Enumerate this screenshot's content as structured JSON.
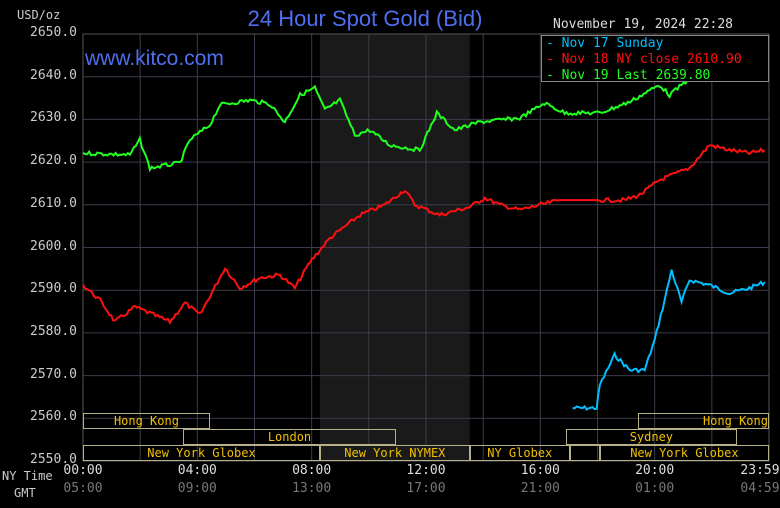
{
  "header": {
    "title": "24 Hour Spot Gold (Bid)",
    "unit": "USD/oz",
    "date": "November 19, 2024 22:28",
    "watermark": "www.kitco.com"
  },
  "chart_data": {
    "type": "line",
    "title": "24 Hour Spot Gold (Bid)",
    "ylabel": "USD/oz",
    "ylim": [
      2550,
      2650
    ],
    "xlim": [
      0,
      24
    ],
    "y_ticks": [
      "2650.0",
      "2640.0",
      "2630.0",
      "2620.0",
      "2610.0",
      "2600.0",
      "2590.0",
      "2580.0",
      "2570.0",
      "2560.0",
      "2550.0"
    ],
    "x_row_labels": [
      "NY Time",
      "GMT"
    ],
    "x_ticks_ny": [
      "00:00",
      "04:00",
      "08:00",
      "12:00",
      "16:00",
      "20:00",
      "23:59"
    ],
    "x_ticks_gmt": [
      "05:00",
      "09:00",
      "13:00",
      "17:00",
      "21:00",
      "01:00",
      "04:59"
    ],
    "grid": true,
    "legend_position": "top-right",
    "series": [
      {
        "name": "Nov 17 Sunday",
        "color": "#00bfff",
        "points": [
          [
            17.13,
            2562.4
          ],
          [
            17.97,
            2562.4
          ],
          [
            18.08,
            2567.8
          ],
          [
            18.6,
            2574.8
          ],
          [
            19.13,
            2571.3
          ],
          [
            19.65,
            2571.3
          ],
          [
            20.0,
            2578.3
          ],
          [
            20.35,
            2587.7
          ],
          [
            20.59,
            2594.7
          ],
          [
            20.94,
            2587.2
          ],
          [
            21.22,
            2592.4
          ],
          [
            21.92,
            2591.2
          ],
          [
            22.62,
            2589.3
          ],
          [
            23.32,
            2590.5
          ],
          [
            23.85,
            2591.9
          ]
        ]
      },
      {
        "name": "Nov 18 NY close 2610.90",
        "color": "#ff1010",
        "points": [
          [
            0,
            2591.2
          ],
          [
            0.59,
            2587.7
          ],
          [
            1.12,
            2582.6
          ],
          [
            1.82,
            2586.1
          ],
          [
            3.04,
            2582.6
          ],
          [
            3.57,
            2587
          ],
          [
            4.09,
            2584.2
          ],
          [
            4.97,
            2595.2
          ],
          [
            5.49,
            2590.5
          ],
          [
            6.19,
            2592.9
          ],
          [
            6.89,
            2593.6
          ],
          [
            7.41,
            2590.5
          ],
          [
            7.94,
            2596.6
          ],
          [
            8.64,
            2602.2
          ],
          [
            9.69,
            2607.6
          ],
          [
            10.56,
            2610
          ],
          [
            11.26,
            2613.5
          ],
          [
            11.61,
            2610
          ],
          [
            12.48,
            2607.6
          ],
          [
            13.53,
            2609.5
          ],
          [
            14.06,
            2611.6
          ],
          [
            14.58,
            2610
          ],
          [
            15.28,
            2608.8
          ],
          [
            16.68,
            2611.1
          ],
          [
            18.08,
            2611.1
          ],
          [
            18.95,
            2611.1
          ],
          [
            19.48,
            2612.3
          ],
          [
            20.17,
            2615.8
          ],
          [
            21.22,
            2618.6
          ],
          [
            21.92,
            2624
          ],
          [
            22.62,
            2622.8
          ],
          [
            23.32,
            2622.1
          ],
          [
            23.85,
            2622.8
          ]
        ]
      },
      {
        "name": "Nov 19 Last 2639.80",
        "color": "#20ff20",
        "points": [
          [
            0,
            2622.1
          ],
          [
            1.64,
            2621.7
          ],
          [
            1.99,
            2625.2
          ],
          [
            2.34,
            2618.6
          ],
          [
            3.39,
            2619.8
          ],
          [
            3.74,
            2625.2
          ],
          [
            4.44,
            2628.7
          ],
          [
            4.79,
            2633.4
          ],
          [
            5.84,
            2634.5
          ],
          [
            6.54,
            2633.6
          ],
          [
            7.06,
            2629.4
          ],
          [
            7.59,
            2635.7
          ],
          [
            8.11,
            2637.4
          ],
          [
            8.46,
            2632.2
          ],
          [
            8.99,
            2634.5
          ],
          [
            9.51,
            2626.3
          ],
          [
            10.03,
            2627.5
          ],
          [
            10.73,
            2624
          ],
          [
            11.78,
            2622.8
          ],
          [
            12.38,
            2631.5
          ],
          [
            13.01,
            2627.5
          ],
          [
            13.88,
            2629.4
          ],
          [
            15.28,
            2630.3
          ],
          [
            16.15,
            2633.8
          ],
          [
            16.85,
            2631.5
          ],
          [
            18.08,
            2631.5
          ],
          [
            19.13,
            2634.1
          ],
          [
            20.17,
            2638.1
          ],
          [
            20.52,
            2635.7
          ],
          [
            21.15,
            2639.2
          ]
        ]
      }
    ]
  },
  "sessions": [
    {
      "label": "Hong Kong",
      "row": 0,
      "start": 0,
      "end": 4.44
    },
    {
      "label": "Hong Kong",
      "row": 0,
      "start": 19.4,
      "end": 24
    },
    {
      "label": "London",
      "row": 1,
      "start": 3.5,
      "end": 10.95
    },
    {
      "label": "Sydney",
      "row": 1,
      "start": 16.9,
      "end": 22.87
    },
    {
      "label": "New York Globex",
      "row": 2,
      "start": 0,
      "end": 8.29
    },
    {
      "label": "New York NYMEX",
      "row": 2,
      "start": 8.29,
      "end": 13.53
    },
    {
      "label": "NY Globex",
      "row": 2,
      "start": 13.53,
      "end": 17.03
    },
    {
      "label": "New York Globex",
      "row": 2,
      "start": 18.08,
      "end": 24
    }
  ],
  "colors": {
    "title": "#4f6ff0",
    "grid": "#3c3c4c",
    "band": "#1a1a1a",
    "session_text": "#f0c000"
  }
}
